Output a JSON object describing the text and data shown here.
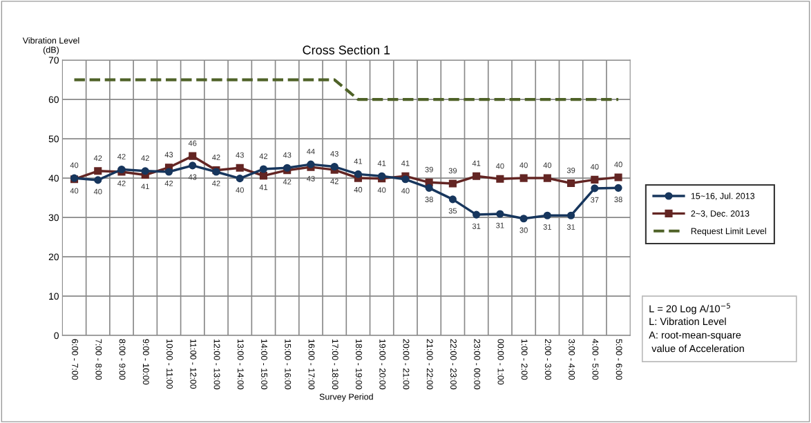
{
  "chart_data": {
    "type": "line",
    "title": "Cross Section 1",
    "xlabel": "Survey Period",
    "ylabel": "Vibration Level\n(dB)",
    "categories": [
      "6:00 - 7:00",
      "7:00 - 8:00",
      "8:00 - 9:00",
      "9:00 - 10:00",
      "10:00 - 11:00",
      "11:00 - 12:00",
      "12:00 - 13:00",
      "13:00 - 14:00",
      "14:00 - 15:00",
      "15:00 - 16:00",
      "16:00 - 17:00",
      "17:00 - 18:00",
      "18:00 - 19:00",
      "19:00 - 20:00",
      "20:00 - 21:00",
      "21:00 - 22:00",
      "22:00 - 23:00",
      "23:00 - 00:00",
      "00:00 - 1:00",
      "1:00 - 2:00",
      "2:00 - 3:00",
      "3:00 - 4:00",
      "4:00 - 5:00",
      "5:00 - 6:00"
    ],
    "series": [
      {
        "name": "15~16, Jul. 2013",
        "color": "#17365d",
        "marker": "circle",
        "line_style": "solid",
        "values": [
          40.0,
          39.5,
          42.2,
          41.8,
          41.6,
          43.2,
          41.6,
          39.9,
          42.3,
          42.6,
          43.5,
          42.9,
          41.0,
          40.5,
          39.7,
          37.5,
          34.6,
          30.7,
          30.9,
          29.7,
          30.5,
          30.5,
          37.4,
          37.5
        ],
        "value_labels": [
          "40",
          "40",
          "42",
          "42",
          "42",
          "43",
          "42",
          "40",
          "42",
          "43",
          "44",
          "43",
          "41",
          "41",
          "40",
          "38",
          "35",
          "31",
          "31",
          "30",
          "31",
          "31",
          "37",
          "38"
        ]
      },
      {
        "name": "2~3, Dec. 2013",
        "color": "#632523",
        "marker": "square",
        "line_style": "solid",
        "values": [
          39.7,
          41.8,
          41.6,
          40.8,
          42.7,
          45.6,
          42.0,
          42.6,
          40.6,
          42.0,
          42.8,
          42.1,
          40.0,
          39.9,
          40.5,
          38.9,
          38.6,
          40.5,
          39.8,
          40.0,
          40.0,
          38.7,
          39.6,
          40.2
        ],
        "value_labels": [
          "40",
          "42",
          "42",
          "41",
          "43",
          "46",
          "42",
          "43",
          "41",
          "42",
          "43",
          "42",
          "40",
          "40",
          "41",
          "39",
          "39",
          "41",
          "40",
          "40",
          "40",
          "39",
          "40",
          "40"
        ]
      },
      {
        "name": "Request Limit Level",
        "color": "#4f6228",
        "marker": "none",
        "line_style": "dashed",
        "values": [
          65,
          65,
          65,
          65,
          65,
          65,
          65,
          65,
          65,
          65,
          65,
          65,
          60,
          60,
          60,
          60,
          60,
          60,
          60,
          60,
          60,
          60,
          60,
          60
        ]
      }
    ],
    "ylim": [
      0,
      70
    ],
    "yticks": [
      0,
      10,
      20,
      30,
      40,
      50,
      60,
      70
    ],
    "grid": true,
    "legend": "right",
    "annotations": [
      "L = 20 Log A/10$^{−5}$",
      "L: Vibration Level",
      "A: root-mean-square",
      " value of Acceleration"
    ]
  }
}
